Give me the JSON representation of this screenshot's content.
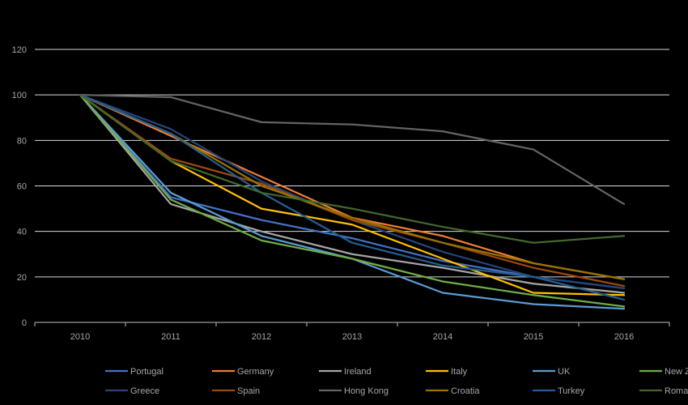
{
  "chart_data": {
    "type": "line",
    "title": "",
    "xlabel": "",
    "ylabel": "",
    "x": [
      "2010",
      "2011",
      "2012",
      "2013",
      "2014",
      "2015",
      "2016"
    ],
    "ylim": [
      0,
      120
    ],
    "yticks": [
      0,
      20,
      40,
      60,
      80,
      100,
      120
    ],
    "grid": true,
    "legend_position": "bottom",
    "series": [
      {
        "name": "Portugal",
        "color": "#4472C4",
        "values": [
          100,
          55,
          45,
          37,
          27,
          20,
          15
        ]
      },
      {
        "name": "Germany",
        "color": "#ED7D31",
        "values": [
          100,
          82,
          64,
          46,
          38,
          26,
          19
        ]
      },
      {
        "name": "Ireland",
        "color": "#A5A5A5",
        "values": [
          100,
          52,
          40,
          30,
          24,
          17,
          13
        ]
      },
      {
        "name": "Italy",
        "color": "#FFC000",
        "values": [
          100,
          71,
          50,
          43,
          28,
          13,
          12
        ]
      },
      {
        "name": "UK",
        "color": "#5B9BD5",
        "values": [
          100,
          57,
          38,
          28,
          13,
          8,
          6
        ]
      },
      {
        "name": "New Zealand",
        "color": "#70AD47",
        "values": [
          100,
          54,
          36,
          28,
          18,
          12,
          7
        ]
      },
      {
        "name": "Greece",
        "color": "#264478",
        "values": [
          100,
          85,
          62,
          45,
          31,
          20,
          15
        ]
      },
      {
        "name": "Spain",
        "color": "#9E480E",
        "values": [
          100,
          72,
          61,
          45,
          35,
          24,
          16
        ]
      },
      {
        "name": "Hong Kong",
        "color": "#636363",
        "values": [
          100,
          99,
          88,
          87,
          84,
          76,
          52
        ]
      },
      {
        "name": "Croatia",
        "color": "#997300",
        "values": [
          100,
          83,
          60,
          46,
          35,
          26,
          19
        ]
      },
      {
        "name": "Turkey",
        "color": "#255E91",
        "values": [
          100,
          83,
          57,
          35,
          25,
          20,
          10
        ]
      },
      {
        "name": "Romania",
        "color": "#43682B",
        "values": [
          100,
          71,
          57,
          50,
          42,
          35,
          38
        ]
      }
    ]
  }
}
